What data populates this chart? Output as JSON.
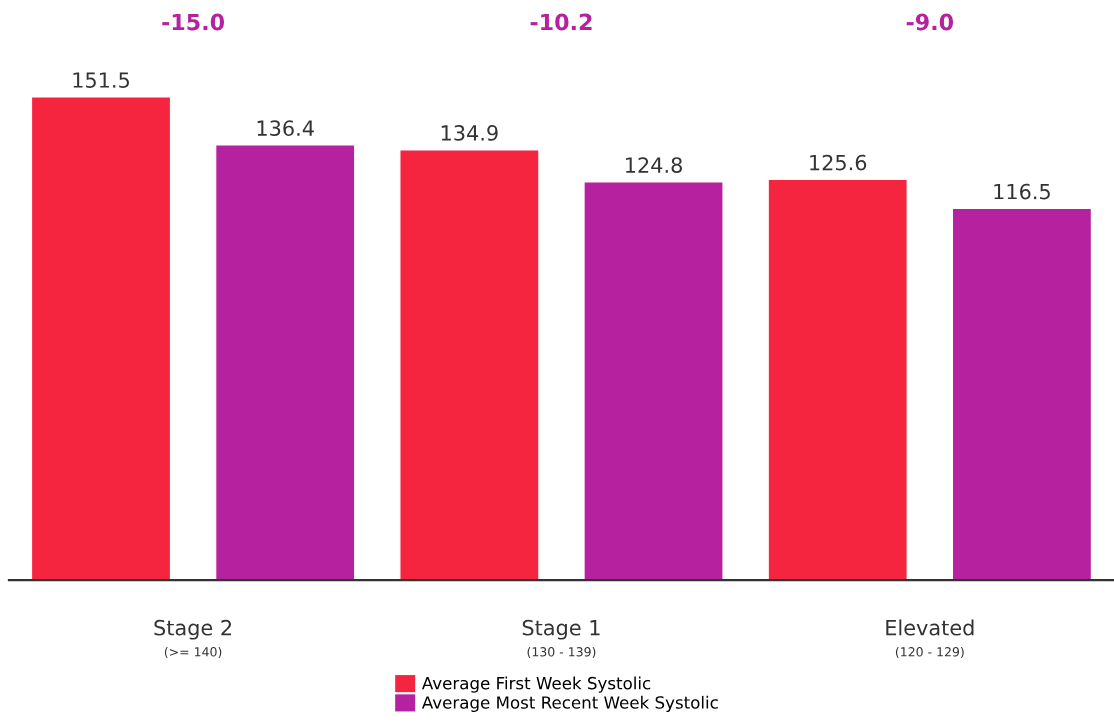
{
  "chart_data": {
    "type": "bar",
    "categories": [
      "Stage 2\n(>= 140)",
      "Stage 1\n(130 - 139)",
      "Elevated\n(120 - 129)"
    ],
    "series": [
      {
        "name": "Average First Week Systolic",
        "color": "#f5243f",
        "values": [
          151.5,
          134.9,
          125.6
        ]
      },
      {
        "name": "Average Most Recent Week Systolic",
        "color": "#b5219f",
        "values": [
          136.4,
          124.8,
          116.5
        ]
      }
    ],
    "annotations": [
      "-15.0",
      "-10.2",
      "-9.0"
    ],
    "data_labels": true,
    "legend": "bottom",
    "tick_labels": "x"
  }
}
